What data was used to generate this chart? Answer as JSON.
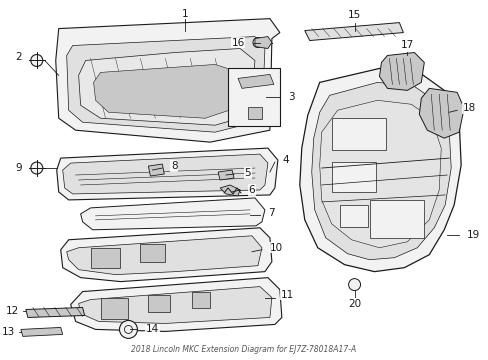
{
  "title": "2018 Lincoln MKC Extension Diagram for EJ7Z-78018A17-A",
  "bg_color": "#ffffff",
  "lc": "#1a1a1a",
  "fc_light": "#f2f2f2",
  "fc_mid": "#e0e0e0",
  "fc_dark": "#c8c8c8",
  "label_fs": 7.5
}
